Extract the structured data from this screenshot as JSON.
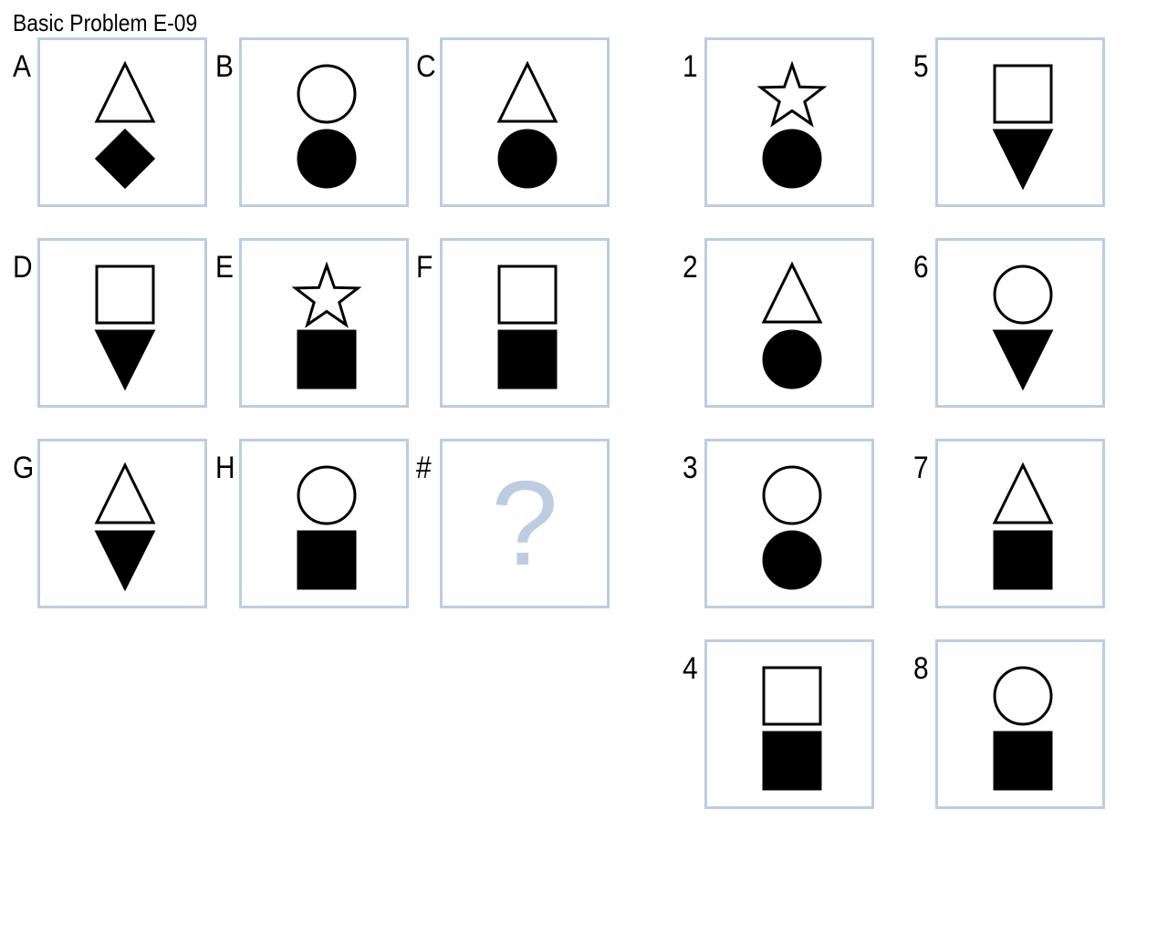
{
  "title": "Basic Problem E-09",
  "matrix": [
    {
      "label": "A",
      "top": "triangle-up-outline",
      "bottom": "diamond-filled"
    },
    {
      "label": "B",
      "top": "circle-outline",
      "bottom": "circle-filled"
    },
    {
      "label": "C",
      "top": "triangle-up-outline",
      "bottom": "circle-filled"
    },
    {
      "label": "D",
      "top": "square-outline",
      "bottom": "triangle-down-filled"
    },
    {
      "label": "E",
      "top": "star-outline",
      "bottom": "square-filled"
    },
    {
      "label": "F",
      "top": "square-outline",
      "bottom": "square-filled"
    },
    {
      "label": "G",
      "top": "triangle-up-outline",
      "bottom": "triangle-down-filled"
    },
    {
      "label": "H",
      "top": "circle-outline",
      "bottom": "square-filled"
    },
    {
      "label": "#",
      "question": "?"
    }
  ],
  "answers": [
    {
      "label": "1",
      "top": "star-outline",
      "bottom": "circle-filled"
    },
    {
      "label": "2",
      "top": "triangle-up-outline",
      "bottom": "circle-filled"
    },
    {
      "label": "3",
      "top": "circle-outline",
      "bottom": "circle-filled"
    },
    {
      "label": "4",
      "top": "square-outline",
      "bottom": "square-filled"
    },
    {
      "label": "5",
      "top": "square-outline",
      "bottom": "triangle-down-filled"
    },
    {
      "label": "6",
      "top": "circle-outline",
      "bottom": "triangle-down-filled"
    },
    {
      "label": "7",
      "top": "triangle-up-outline",
      "bottom": "square-filled"
    },
    {
      "label": "8",
      "top": "circle-outline",
      "bottom": "square-filled"
    }
  ],
  "colors": {
    "border": "#bccde1",
    "question": "#bccde1",
    "shape": "#000000"
  }
}
